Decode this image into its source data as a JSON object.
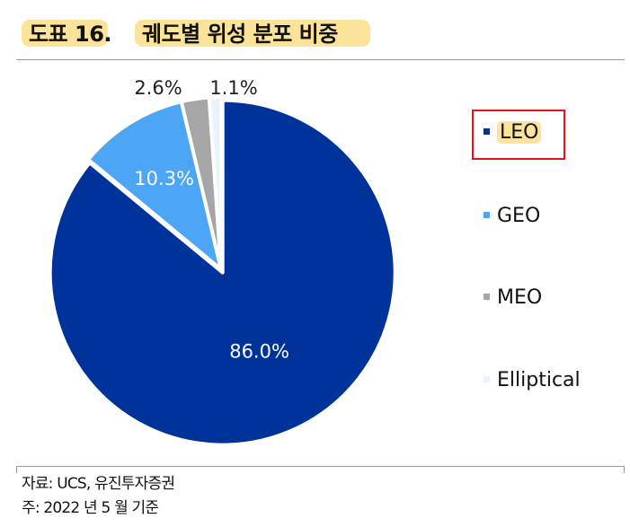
{
  "header": {
    "figure_number": "도표 16.",
    "title": "궤도별 위성 분포 비중"
  },
  "chart_data": {
    "type": "pie",
    "title": "궤도별 위성 분포 비중",
    "categories": [
      "LEO",
      "GEO",
      "MEO",
      "Elliptical"
    ],
    "values": [
      86.0,
      10.3,
      2.6,
      1.1
    ],
    "value_labels": [
      "86.0%",
      "10.3%",
      "2.6%",
      "1.1%"
    ],
    "colors": [
      "#003399",
      "#4da6f5",
      "#a6a6a6",
      "#eaf3fd"
    ],
    "exploded_slice": "LEO",
    "legend_position": "right"
  },
  "legend": {
    "items": [
      {
        "label": "LEO",
        "color": "#003399",
        "highlighted": true
      },
      {
        "label": "GEO",
        "color": "#4da6f5"
      },
      {
        "label": "MEO",
        "color": "#a6a6a6"
      },
      {
        "label": "Elliptical",
        "color": "#eaf3fd"
      }
    ]
  },
  "footer": {
    "source": "자료: UCS, 유진투자증권",
    "note": "주: 2022 년 5 월 기준"
  }
}
